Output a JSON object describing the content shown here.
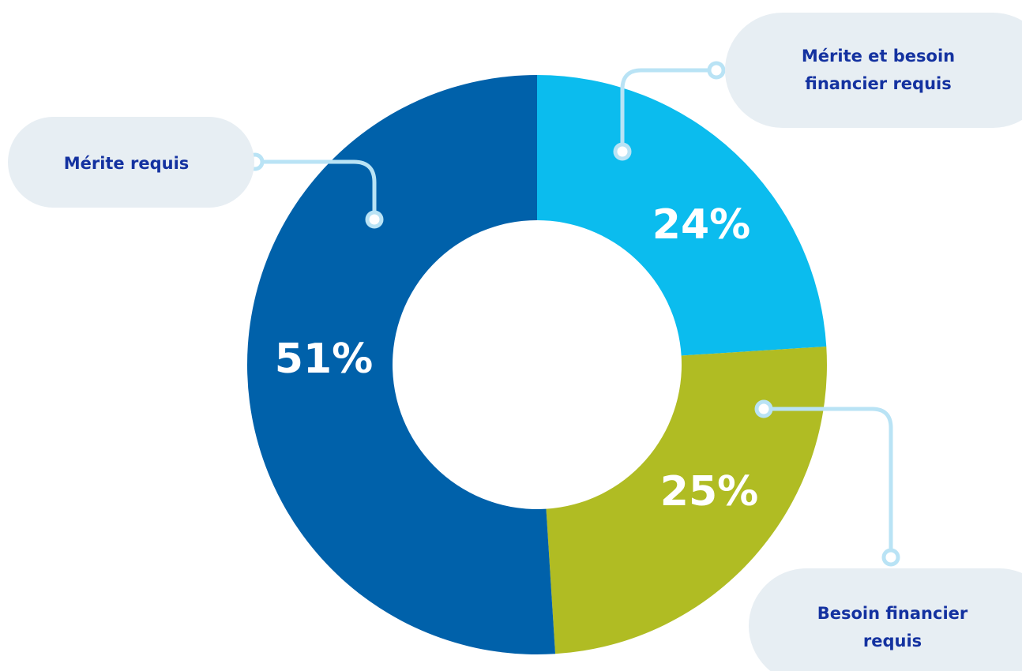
{
  "colors": {
    "background": "#ffffff",
    "bubble": "#e7eef3",
    "bubble_text": "#1432a0",
    "connector": "#b9e3f5",
    "label_text": "#ffffff"
  },
  "chart_data": {
    "type": "pie",
    "donut": true,
    "legend": "none",
    "slices": [
      {
        "name": "Mérite et besoin financier requis",
        "name_lines": [
          "Mérite et besoin",
          "financier requis"
        ],
        "value": 24,
        "label": "24%",
        "color": "#0bbcee"
      },
      {
        "name": "Besoin financier requis",
        "name_lines": [
          "Besoin financier",
          "requis"
        ],
        "value": 25,
        "label": "25%",
        "color": "#b0bc23"
      },
      {
        "name": "Mérite requis",
        "name_lines": [
          "Mérite requis"
        ],
        "value": 51,
        "label": "51%",
        "color": "#0061aa"
      }
    ]
  }
}
